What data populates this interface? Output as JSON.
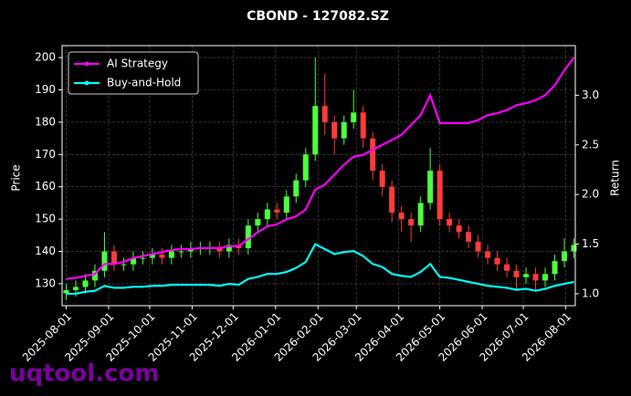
{
  "chart_data": {
    "type": "candlestick",
    "title": "CBOND - 127082.SZ",
    "ylabel": "Price",
    "y2label": "Return",
    "watermark": "uqtool.com",
    "x": [
      "2025-08-01",
      "2025-08-08",
      "2025-08-15",
      "2025-08-22",
      "2025-08-29",
      "2025-09-05",
      "2025-09-12",
      "2025-09-19",
      "2025-09-26",
      "2025-10-03",
      "2025-10-10",
      "2025-10-17",
      "2025-10-24",
      "2025-10-31",
      "2025-11-07",
      "2025-11-14",
      "2025-11-21",
      "2025-11-28",
      "2025-12-05",
      "2025-12-12",
      "2025-12-19",
      "2025-12-26",
      "2026-01-02",
      "2026-01-09",
      "2026-01-16",
      "2026-01-23",
      "2026-01-30",
      "2026-02-06",
      "2026-02-13",
      "2026-02-20",
      "2026-02-27",
      "2026-03-06",
      "2026-03-13",
      "2026-03-20",
      "2026-03-27",
      "2026-04-03",
      "2026-04-10",
      "2026-04-17",
      "2026-04-24",
      "2026-05-01",
      "2026-05-08",
      "2026-05-15",
      "2026-05-22",
      "2026-05-29",
      "2026-06-05",
      "2026-06-12",
      "2026-06-19",
      "2026-06-26",
      "2026-07-03",
      "2026-07-10",
      "2026-07-17",
      "2026-07-24",
      "2026-07-31",
      "2026-08-07"
    ],
    "open": [
      127,
      128,
      129,
      131,
      134,
      140,
      136,
      136,
      138,
      138,
      139,
      138,
      140,
      140,
      141,
      141,
      141,
      140,
      142,
      141,
      148,
      150,
      153,
      152,
      157,
      162,
      170,
      185,
      180,
      175,
      180,
      183,
      175,
      165,
      160,
      152,
      150,
      148,
      155,
      165,
      150,
      148,
      146,
      143,
      140,
      138,
      136,
      134,
      132,
      133,
      131,
      133,
      137,
      140
    ],
    "high": [
      130,
      131,
      133,
      136,
      146,
      142,
      138,
      140,
      140,
      141,
      141,
      142,
      142,
      143,
      143,
      143,
      143,
      144,
      144,
      150,
      152,
      155,
      155,
      159,
      164,
      172,
      200,
      195,
      182,
      182,
      190,
      185,
      177,
      167,
      162,
      154,
      152,
      157,
      172,
      167,
      152,
      150,
      148,
      145,
      142,
      140,
      138,
      136,
      135,
      135,
      135,
      139,
      144,
      144
    ],
    "low": [
      125,
      126,
      127,
      129,
      132,
      134,
      134,
      134,
      136,
      136,
      136,
      136,
      138,
      138,
      139,
      139,
      138,
      138,
      139,
      139,
      146,
      148,
      150,
      150,
      155,
      160,
      168,
      176,
      170,
      173,
      178,
      172,
      162,
      157,
      149,
      146,
      143,
      146,
      153,
      148,
      146,
      144,
      141,
      138,
      136,
      134,
      132,
      128,
      130,
      128,
      129,
      131,
      135,
      138
    ],
    "close": [
      128,
      129,
      131,
      134,
      140,
      136,
      136,
      138,
      138,
      139,
      138,
      140,
      140,
      141,
      141,
      141,
      140,
      142,
      141,
      148,
      150,
      153,
      152,
      157,
      162,
      170,
      185,
      180,
      175,
      180,
      183,
      175,
      165,
      160,
      152,
      150,
      148,
      155,
      165,
      150,
      148,
      146,
      143,
      140,
      138,
      136,
      134,
      132,
      133,
      131,
      133,
      137,
      140,
      142
    ],
    "up_color": "#4cff3c",
    "down_color": "#ff3b3b",
    "series": [
      {
        "name": "AI Strategy",
        "color": "#ff00ff",
        "axis": "y2",
        "values": [
          1.15,
          1.16,
          1.18,
          1.2,
          1.3,
          1.3,
          1.32,
          1.36,
          1.38,
          1.4,
          1.42,
          1.44,
          1.45,
          1.45,
          1.46,
          1.46,
          1.46,
          1.48,
          1.48,
          1.55,
          1.62,
          1.68,
          1.7,
          1.75,
          1.78,
          1.85,
          2.05,
          2.1,
          2.2,
          2.3,
          2.38,
          2.4,
          2.45,
          2.5,
          2.55,
          2.6,
          2.7,
          2.8,
          3.0,
          2.72,
          2.72,
          2.72,
          2.72,
          2.75,
          2.8,
          2.82,
          2.85,
          2.9,
          2.92,
          2.95,
          3.0,
          3.1,
          3.25,
          3.38
        ]
      },
      {
        "name": "Buy-and-Hold",
        "color": "#00ffff",
        "axis": "y2",
        "values": [
          1.0,
          1.0,
          1.02,
          1.03,
          1.08,
          1.06,
          1.06,
          1.07,
          1.07,
          1.08,
          1.08,
          1.09,
          1.09,
          1.09,
          1.09,
          1.09,
          1.08,
          1.1,
          1.09,
          1.15,
          1.17,
          1.2,
          1.2,
          1.22,
          1.26,
          1.32,
          1.5,
          1.45,
          1.4,
          1.42,
          1.43,
          1.38,
          1.3,
          1.27,
          1.2,
          1.18,
          1.17,
          1.22,
          1.3,
          1.17,
          1.16,
          1.14,
          1.12,
          1.1,
          1.08,
          1.07,
          1.06,
          1.04,
          1.05,
          1.03,
          1.05,
          1.08,
          1.1,
          1.12
        ]
      }
    ],
    "xlim": [
      "2025-07-29",
      "2026-08-08"
    ],
    "xticks": [
      "2025-08-01",
      "2025-09-01",
      "2025-10-01",
      "2025-11-01",
      "2025-12-01",
      "2026-01-01",
      "2026-02-01",
      "2026-03-01",
      "2026-04-01",
      "2026-05-01",
      "2026-06-01",
      "2026-07-01",
      "2026-08-01"
    ],
    "ylim": [
      123.2,
      203.7
    ],
    "yticks": [
      130,
      140,
      150,
      160,
      170,
      180,
      190,
      200
    ],
    "y2lim": [
      0.88,
      3.5
    ],
    "y2ticks": [
      {
        "value": 1,
        "label": "1.0"
      },
      {
        "value": 1.5,
        "label": "1.5"
      },
      {
        "value": 2,
        "label": "2.0"
      },
      {
        "value": 2.5,
        "label": "2.5"
      },
      {
        "value": 3,
        "label": "3.0"
      }
    ],
    "grid": true,
    "legend": "upper left"
  }
}
